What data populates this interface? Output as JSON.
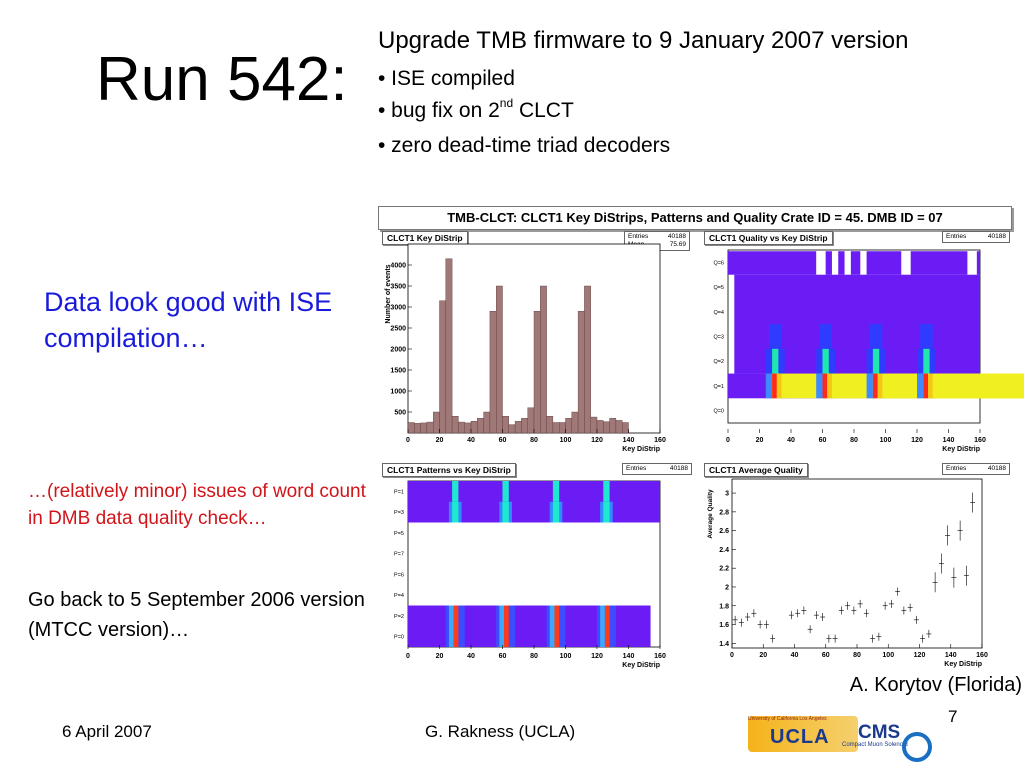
{
  "slide": {
    "title": "Run 542:",
    "upgrade": "Upgrade TMB firmware to 9 January 2007 version",
    "bullets": [
      {
        "text": "• ISE compiled"
      },
      {
        "text": "• bug fix on 2",
        "sup": "nd",
        "after": " CLCT"
      },
      {
        "text": "• zero dead-time triad decoders"
      }
    ],
    "good_note": "Data look good with ISE compilation…",
    "issues_note": "…(relatively minor) issues of word count in DMB data quality check…",
    "goback_note": "Go back to 5 September 2006 version (MTCC version)…",
    "plot_author": "A. Korytov (Florida)",
    "page_number": "7"
  },
  "footer": {
    "date": "6 April 2007",
    "author": "G. Rakness (UCLA)",
    "logo_top": "University of California Los Angeles",
    "logo_ucla": "UCLA",
    "logo_cms": "CMS",
    "logo_cms_sub": "Compact Muon Solenoid"
  },
  "colors": {
    "accent_blue": "#1a1adb",
    "warning_red": "#d1141a",
    "histogram_fill": "#a07878"
  },
  "panel_title": "TMB-CLCT: CLCT1 Key DiStrips, Patterns and Quality Crate ID = 45. DMB ID = 07",
  "chart_data": [
    {
      "type": "bar",
      "title": "CLCT1 Key DiStrip",
      "stats": {
        "Entries": "40188",
        "Mean": "75.69"
      },
      "xlabel": "Key DiStrip",
      "ylabel": "Number of events",
      "xlim": [
        0,
        160
      ],
      "ylim": [
        0,
        4500
      ],
      "x_ticks": [
        "0",
        "20",
        "40",
        "60",
        "80",
        "100",
        "120",
        "140",
        "160"
      ],
      "y_ticks": [
        "500",
        "1000",
        "1500",
        "2000",
        "2500",
        "3000",
        "3500",
        "4000"
      ],
      "bin_width": 4,
      "values": [
        250,
        230,
        240,
        260,
        500,
        3150,
        4150,
        400,
        260,
        240,
        280,
        350,
        500,
        2900,
        3500,
        400,
        200,
        280,
        350,
        600,
        2900,
        3500,
        400,
        250,
        250,
        350,
        500,
        2900,
        3500,
        380,
        300,
        270,
        350,
        300,
        250,
        0,
        0,
        0,
        0,
        0
      ]
    },
    {
      "type": "heatmap",
      "title": "CLCT1 Quality vs Key DiStrip",
      "stats": {
        "Entries": "40188"
      },
      "xlabel": "Key DiStrip",
      "xlim": [
        0,
        160
      ],
      "x_ticks": [
        "0",
        "20",
        "40",
        "60",
        "80",
        "100",
        "120",
        "140",
        "160"
      ],
      "y_categories": [
        "Q=0",
        "Q=1",
        "Q=2",
        "Q=3",
        "Q=4",
        "Q=5",
        "Q=6"
      ]
    },
    {
      "type": "heatmap",
      "title": "CLCT1 Patterns vs Key DiStrip",
      "stats": {
        "Entries": "40188"
      },
      "xlabel": "Key DiStrip",
      "xlim": [
        0,
        160
      ],
      "x_ticks": [
        "0",
        "20",
        "40",
        "60",
        "80",
        "100",
        "120",
        "140",
        "160"
      ],
      "y_categories": [
        "P=0",
        "P=2",
        "P=4",
        "P=6",
        "P=7",
        "P=5",
        "P=3",
        "P=1"
      ]
    },
    {
      "type": "scatter",
      "title": "CLCT1 Average Quality",
      "stats": {
        "Entries": "40188"
      },
      "xlabel": "Key DiStrip",
      "ylabel": "Average Quality",
      "xlim": [
        0,
        160
      ],
      "ylim": [
        1.35,
        3.15
      ],
      "x_ticks": [
        "0",
        "20",
        "40",
        "60",
        "80",
        "100",
        "120",
        "140",
        "160"
      ],
      "y_ticks": [
        "1.4",
        "1.6",
        "1.8",
        "2",
        "2.2",
        "2.4",
        "2.6",
        "2.8",
        "3"
      ],
      "points": [
        {
          "x": 2,
          "y": 1.65
        },
        {
          "x": 6,
          "y": 1.62
        },
        {
          "x": 10,
          "y": 1.68
        },
        {
          "x": 14,
          "y": 1.72
        },
        {
          "x": 18,
          "y": 1.6
        },
        {
          "x": 22,
          "y": 1.6
        },
        {
          "x": 26,
          "y": 1.45
        },
        {
          "x": 38,
          "y": 1.7
        },
        {
          "x": 42,
          "y": 1.72
        },
        {
          "x": 46,
          "y": 1.75
        },
        {
          "x": 50,
          "y": 1.55
        },
        {
          "x": 54,
          "y": 1.7
        },
        {
          "x": 58,
          "y": 1.68
        },
        {
          "x": 62,
          "y": 1.45
        },
        {
          "x": 66,
          "y": 1.45
        },
        {
          "x": 70,
          "y": 1.75
        },
        {
          "x": 74,
          "y": 1.8
        },
        {
          "x": 78,
          "y": 1.75
        },
        {
          "x": 82,
          "y": 1.82
        },
        {
          "x": 86,
          "y": 1.72
        },
        {
          "x": 90,
          "y": 1.45
        },
        {
          "x": 94,
          "y": 1.47
        },
        {
          "x": 98,
          "y": 1.8
        },
        {
          "x": 102,
          "y": 1.82
        },
        {
          "x": 106,
          "y": 1.95
        },
        {
          "x": 110,
          "y": 1.75
        },
        {
          "x": 114,
          "y": 1.78
        },
        {
          "x": 118,
          "y": 1.65
        },
        {
          "x": 122,
          "y": 1.45
        },
        {
          "x": 126,
          "y": 1.5
        },
        {
          "x": 130,
          "y": 2.05
        },
        {
          "x": 134,
          "y": 2.25
        },
        {
          "x": 138,
          "y": 2.55
        },
        {
          "x": 142,
          "y": 2.1
        },
        {
          "x": 146,
          "y": 2.6
        },
        {
          "x": 150,
          "y": 2.12
        },
        {
          "x": 154,
          "y": 2.9
        }
      ]
    }
  ]
}
